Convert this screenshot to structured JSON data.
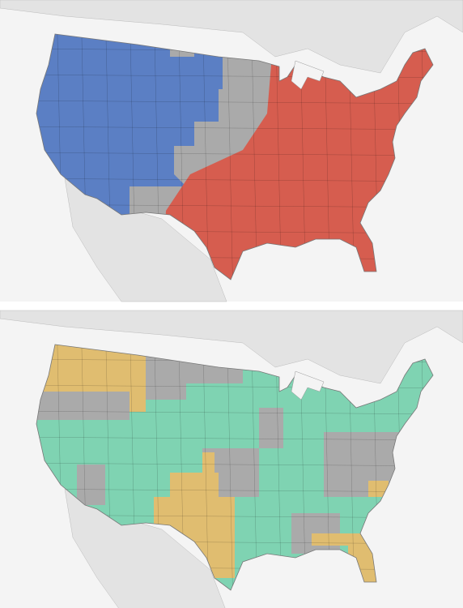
{
  "maps": [
    {
      "colors": [
        "#5b7fc4",
        "#aaaaaa",
        "#d65d4f"
      ]
    },
    {
      "colors": [
        "#7fd3b2",
        "#aaaaaa",
        "#e0bd70"
      ]
    }
  ]
}
